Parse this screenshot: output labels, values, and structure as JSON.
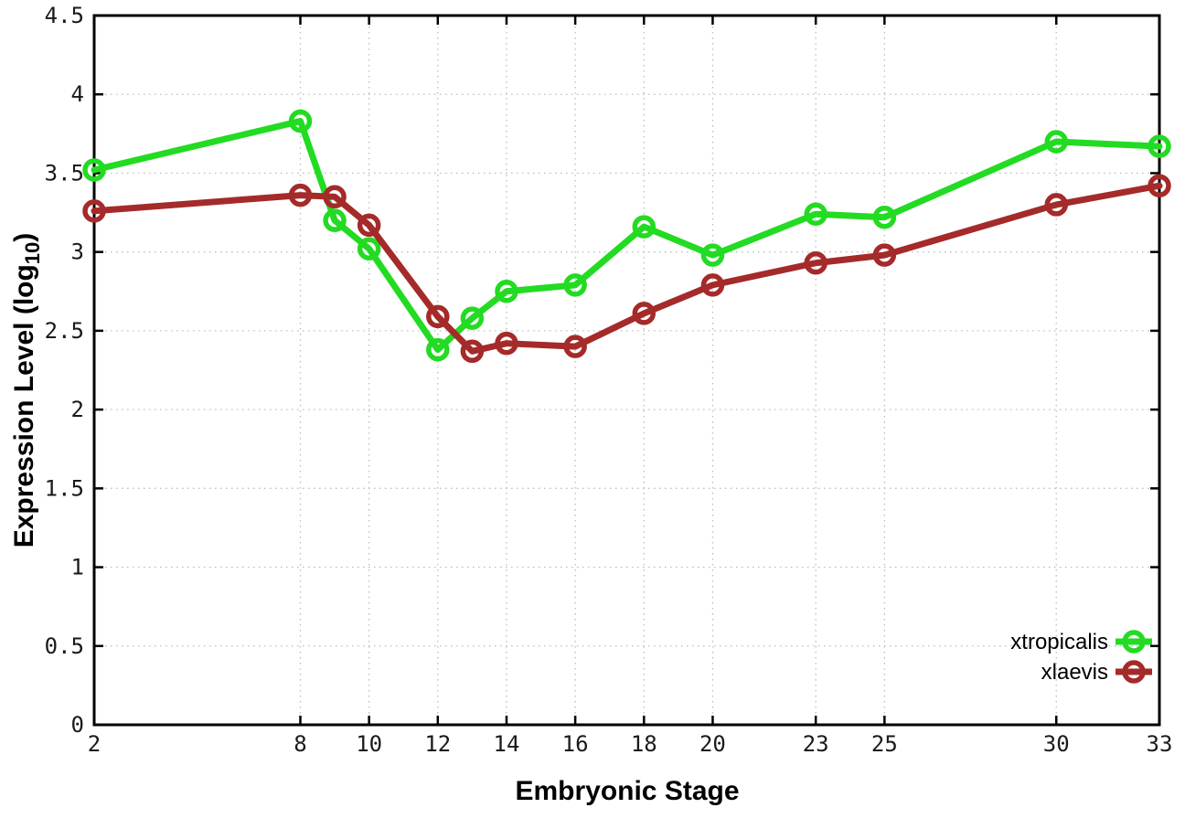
{
  "chart_data": {
    "type": "line",
    "title": "",
    "xlabel": "Embryonic Stage",
    "ylabel": {
      "main": "Expression Level (log",
      "sub": "10",
      "after": ")"
    },
    "x": [
      2,
      8,
      9,
      10,
      12,
      13,
      14,
      16,
      18,
      20,
      23,
      25,
      30,
      33
    ],
    "series": [
      {
        "name": "xtropicalis",
        "color": "#22DB22",
        "values": [
          3.52,
          3.83,
          3.2,
          3.02,
          2.38,
          2.58,
          2.75,
          2.79,
          3.16,
          2.98,
          3.24,
          3.22,
          3.7,
          3.67
        ]
      },
      {
        "name": "xlaevis",
        "color": "#A52A2A",
        "values": [
          3.26,
          3.36,
          3.35,
          3.17,
          2.59,
          2.37,
          2.42,
          2.4,
          2.61,
          2.79,
          2.93,
          2.98,
          3.3,
          3.42
        ]
      }
    ],
    "xticks": [
      2,
      8,
      10,
      12,
      14,
      16,
      18,
      20,
      23,
      25,
      30,
      33
    ],
    "yticks": [
      0,
      0.5,
      1,
      1.5,
      2,
      2.5,
      3,
      3.5,
      4,
      4.5
    ],
    "xlim": [
      2,
      33
    ],
    "ylim": [
      0,
      4.5
    ],
    "grid": true,
    "legend_position": "inside-bottom-right",
    "marker": "open-circle"
  },
  "colors": {
    "background": "#ffffff",
    "axis": "#000000",
    "grid": "#bdbdbd",
    "tick_text": "#1a1a1a"
  }
}
